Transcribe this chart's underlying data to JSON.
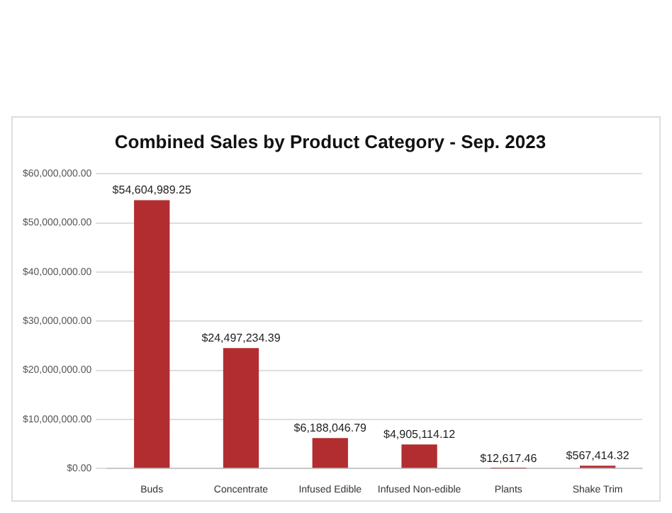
{
  "chart_data": {
    "type": "bar",
    "title": "Combined Sales by Product Category - Sep. 2023",
    "categories": [
      "Buds",
      "Concentrate",
      "Infused Edible",
      "Infused Non-edible",
      "Plants",
      "Shake Trim"
    ],
    "values": [
      54604989.25,
      24497234.39,
      6188046.79,
      4905114.12,
      12617.46,
      567414.32
    ],
    "value_labels": [
      "$54,604,989.25",
      "$24,497,234.39",
      "$6,188,046.79",
      "$4,905,114.12",
      "$12,617.46",
      "$567,414.32"
    ],
    "color": "#b22d30",
    "ylim": [
      0,
      60000000
    ],
    "yticks": [
      {
        "value": 0,
        "label": "$0.00"
      },
      {
        "value": 10000000,
        "label": "$10,000,000.00"
      },
      {
        "value": 20000000,
        "label": "$20,000,000.00"
      },
      {
        "value": 30000000,
        "label": "$30,000,000.00"
      },
      {
        "value": 40000000,
        "label": "$40,000,000.00"
      },
      {
        "value": 50000000,
        "label": "$50,000,000.00"
      },
      {
        "value": 60000000,
        "label": "$60,000,000.00"
      }
    ],
    "grid": "y",
    "legend": false
  }
}
